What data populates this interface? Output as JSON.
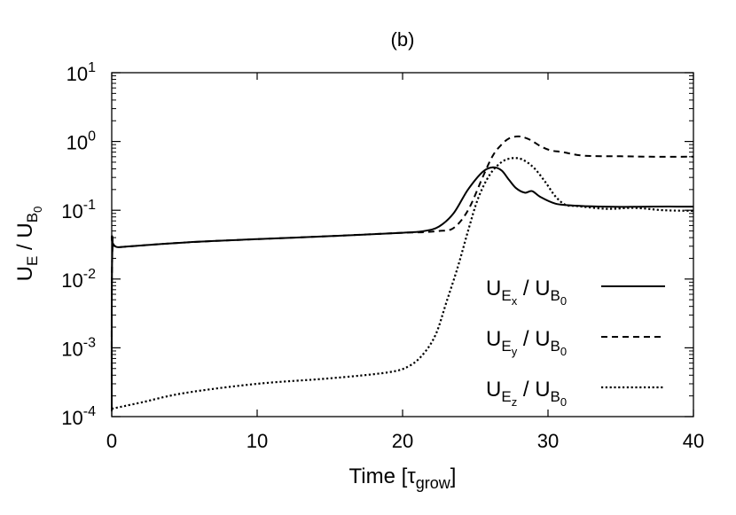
{
  "chart_data": {
    "type": "line",
    "title": "(b)",
    "xlabel": {
      "main": "Time [",
      "symbol": "τ",
      "sub": "grow",
      "close": "]"
    },
    "ylabel": {
      "a": "U",
      "a_sub": "E",
      "sep": " / ",
      "b": "U",
      "b_sub": "B",
      "b_subsub": "0"
    },
    "xlim": [
      0,
      40
    ],
    "ylim_log10": [
      -4,
      1
    ],
    "y_scale": "log",
    "x_ticks": [
      0,
      10,
      20,
      30,
      40
    ],
    "x_tick_labels": [
      "0",
      "10",
      "20",
      "30",
      "40"
    ],
    "y_ticks": [
      {
        "base": "10",
        "exp": "1",
        "value": 10
      },
      {
        "base": "10",
        "exp": "0",
        "value": 1
      },
      {
        "base": "10",
        "exp": "-1",
        "value": 0.1
      },
      {
        "base": "10",
        "exp": "-2",
        "value": 0.01
      },
      {
        "base": "10",
        "exp": "-3",
        "value": 0.001
      },
      {
        "base": "10",
        "exp": "-4",
        "value": 0.0001
      }
    ],
    "legend_position": "lower-right",
    "series": [
      {
        "name": "UEx / UB0",
        "legend": {
          "a": "U",
          "a_sub": "E",
          "a_subsub": "x",
          "sep": " / ",
          "b": "U",
          "b_sub": "B",
          "b_subsub": "0"
        },
        "style": "solid",
        "x": [
          0,
          0.05,
          0.5,
          5,
          10,
          15,
          20,
          21.5,
          22.5,
          23.5,
          24.5,
          25.5,
          26.2,
          26.8,
          27.3,
          27.8,
          28.4,
          28.9,
          29.5,
          30.5,
          31.5,
          33,
          35,
          37,
          40
        ],
        "y": [
          0.00012,
          0.028,
          0.029,
          0.034,
          0.038,
          0.042,
          0.047,
          0.05,
          0.058,
          0.09,
          0.2,
          0.36,
          0.42,
          0.38,
          0.28,
          0.21,
          0.18,
          0.19,
          0.155,
          0.125,
          0.118,
          0.114,
          0.112,
          0.113,
          0.113
        ]
      },
      {
        "name": "UEy / UB0",
        "legend": {
          "a": "U",
          "a_sub": "E",
          "a_subsub": "y",
          "sep": " / ",
          "b": "U",
          "b_sub": "B",
          "b_subsub": "0"
        },
        "style": "dashed",
        "x": [
          0,
          0.05,
          0.5,
          5,
          10,
          15,
          20,
          21.5,
          22.5,
          23.5,
          24.5,
          25.5,
          26.2,
          26.8,
          27.3,
          27.8,
          28.2,
          28.8,
          29.5,
          30.2,
          31,
          32.5,
          35,
          37,
          40
        ],
        "y": [
          0.00012,
          0.028,
          0.029,
          0.034,
          0.038,
          0.042,
          0.047,
          0.048,
          0.05,
          0.055,
          0.1,
          0.3,
          0.62,
          0.9,
          1.1,
          1.18,
          1.17,
          1.05,
          0.85,
          0.74,
          0.7,
          0.62,
          0.61,
          0.6,
          0.6
        ]
      },
      {
        "name": "UEz / UB0",
        "legend": {
          "a": "U",
          "a_sub": "E",
          "a_subsub": "z",
          "sep": " / ",
          "b": "U",
          "b_sub": "B",
          "b_subsub": "0"
        },
        "style": "dotted",
        "x": [
          0,
          2,
          5,
          10,
          15,
          19,
          20.5,
          21.5,
          22.3,
          23,
          23.8,
          24.5,
          25.2,
          26,
          26.8,
          27.5,
          28.2,
          29,
          29.8,
          30.5,
          31.2,
          32,
          34,
          36,
          38,
          40
        ],
        "y": [
          0.00013,
          0.00016,
          0.00022,
          0.0003,
          0.00036,
          0.00044,
          0.00055,
          0.00085,
          0.0016,
          0.0045,
          0.015,
          0.05,
          0.15,
          0.33,
          0.5,
          0.57,
          0.55,
          0.42,
          0.26,
          0.16,
          0.12,
          0.115,
          0.105,
          0.108,
          0.1,
          0.098
        ]
      }
    ]
  }
}
